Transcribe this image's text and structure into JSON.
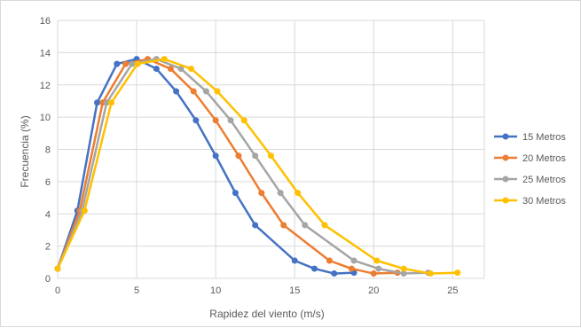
{
  "chart_data": {
    "type": "line",
    "title": "",
    "xlabel": "Rapidez del viento (m/s)",
    "ylabel": "Frecuencia (%)",
    "xlim": [
      0,
      27
    ],
    "ylim": [
      0,
      16
    ],
    "xticks": [
      0,
      5,
      10,
      15,
      20,
      25
    ],
    "yticks": [
      0,
      2,
      4,
      6,
      8,
      10,
      12,
      14,
      16
    ],
    "grid": true,
    "legend": "right",
    "series": [
      {
        "name": "15 Metros",
        "color": "#4472C4",
        "x": [
          0,
          1.25,
          2.5,
          3.75,
          5.0,
          6.25,
          7.5,
          8.75,
          10.0,
          11.25,
          12.5,
          15.0,
          16.25,
          17.5,
          18.75
        ],
        "y": [
          0.6,
          4.2,
          10.9,
          13.3,
          13.6,
          13.0,
          11.6,
          9.8,
          7.6,
          5.3,
          3.3,
          1.1,
          0.6,
          0.3,
          0.35
        ]
      },
      {
        "name": "20 Metros",
        "color": "#ED7D31",
        "x": [
          0,
          1.4,
          2.85,
          4.3,
          5.7,
          7.15,
          8.6,
          10.0,
          11.45,
          12.9,
          14.3,
          17.2,
          18.6,
          20.0,
          21.5
        ],
        "y": [
          0.6,
          4.2,
          10.9,
          13.3,
          13.6,
          13.0,
          11.6,
          9.8,
          7.6,
          5.3,
          3.3,
          1.1,
          0.6,
          0.3,
          0.35
        ]
      },
      {
        "name": "25 Metros",
        "color": "#A5A5A5",
        "x": [
          0,
          1.55,
          3.1,
          4.7,
          6.25,
          7.8,
          9.4,
          10.95,
          12.5,
          14.1,
          15.65,
          18.75,
          20.3,
          21.9,
          23.45
        ],
        "y": [
          0.6,
          4.2,
          10.9,
          13.3,
          13.6,
          13.0,
          11.6,
          9.8,
          7.6,
          5.3,
          3.3,
          1.1,
          0.6,
          0.3,
          0.35
        ]
      },
      {
        "name": "30 Metros",
        "color": "#FFC000",
        "x": [
          0,
          1.7,
          3.4,
          5.05,
          6.75,
          8.45,
          10.1,
          11.8,
          13.5,
          15.2,
          16.9,
          20.2,
          21.9,
          23.6,
          25.3
        ],
        "y": [
          0.6,
          4.2,
          10.9,
          13.3,
          13.6,
          13.0,
          11.6,
          9.8,
          7.6,
          5.3,
          3.3,
          1.1,
          0.6,
          0.3,
          0.35
        ]
      }
    ]
  }
}
